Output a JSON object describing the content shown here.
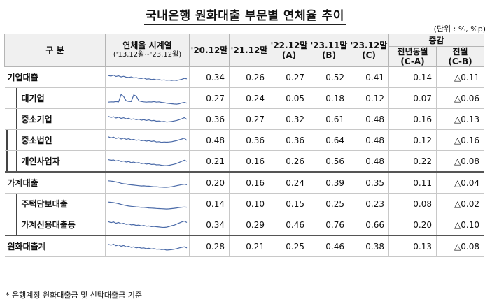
{
  "title": "국내은행 원화대출 부문별 연체율 추이",
  "unit": "(단위 : %, %p)",
  "headers": {
    "category": "구  분",
    "sparkline_title": "연체율 시계열",
    "sparkline_range": "('13.12월~'23.12월)",
    "periods": [
      {
        "label": "'20.12말",
        "sub": ""
      },
      {
        "label": "'21.12말",
        "sub": ""
      },
      {
        "label": "'22.12말",
        "sub": "(A)"
      },
      {
        "label": "'23.11말",
        "sub": "(B)"
      },
      {
        "label": "'23.12말",
        "sub": "(C)"
      }
    ],
    "change_group": "증감",
    "changes": [
      {
        "label": "전년동월",
        "sub": "(C-A)"
      },
      {
        "label": "전월",
        "sub": "(C-B)"
      }
    ]
  },
  "rows": [
    {
      "label": "기업대출",
      "indent": 0,
      "values": [
        "0.34",
        "0.26",
        "0.27",
        "0.52",
        "0.41"
      ],
      "yoy": "0.14",
      "mom": "△0.11",
      "spark": [
        0.62,
        0.58,
        0.66,
        0.55,
        0.6,
        0.52,
        0.57,
        0.5,
        0.48,
        0.52,
        0.44,
        0.47,
        0.42,
        0.4,
        0.44,
        0.36,
        0.38,
        0.33,
        0.35,
        0.3,
        0.32,
        0.28,
        0.3,
        0.27,
        0.29,
        0.26,
        0.28,
        0.26,
        0.3,
        0.35,
        0.41,
        0.38
      ]
    },
    {
      "label": "대기업",
      "indent": 1,
      "values": [
        "0.27",
        "0.24",
        "0.05",
        "0.18",
        "0.12"
      ],
      "yoy": "0.07",
      "mom": "△0.06",
      "spark": [
        0.2,
        0.22,
        0.21,
        0.24,
        0.22,
        0.78,
        0.62,
        0.3,
        0.26,
        0.24,
        0.74,
        0.66,
        0.3,
        0.25,
        0.22,
        0.2,
        0.22,
        0.21,
        0.24,
        0.2,
        0.22,
        0.18,
        0.16,
        0.12,
        0.1,
        0.08,
        0.06,
        0.05,
        0.08,
        0.14,
        0.18,
        0.12
      ]
    },
    {
      "label": "중소기업",
      "indent": 1,
      "values": [
        "0.36",
        "0.27",
        "0.32",
        "0.61",
        "0.48"
      ],
      "yoy": "0.16",
      "mom": "△0.13",
      "spark": [
        0.7,
        0.62,
        0.68,
        0.58,
        0.64,
        0.55,
        0.6,
        0.52,
        0.56,
        0.48,
        0.52,
        0.45,
        0.5,
        0.42,
        0.46,
        0.4,
        0.44,
        0.38,
        0.4,
        0.34,
        0.36,
        0.3,
        0.33,
        0.28,
        0.3,
        0.32,
        0.36,
        0.4,
        0.46,
        0.52,
        0.61,
        0.48
      ]
    },
    {
      "label": "중소법인",
      "indent": 2,
      "values": [
        "0.48",
        "0.36",
        "0.36",
        "0.64",
        "0.48"
      ],
      "yoy": "0.12",
      "mom": "△0.16",
      "spark": [
        0.75,
        0.66,
        0.72,
        0.62,
        0.68,
        0.58,
        0.64,
        0.56,
        0.6,
        0.52,
        0.55,
        0.48,
        0.52,
        0.45,
        0.48,
        0.42,
        0.46,
        0.4,
        0.43,
        0.36,
        0.38,
        0.33,
        0.36,
        0.34,
        0.36,
        0.38,
        0.42,
        0.46,
        0.52,
        0.58,
        0.64,
        0.48
      ]
    },
    {
      "label": "개인사업자",
      "indent": 2,
      "values": [
        "0.21",
        "0.16",
        "0.26",
        "0.56",
        "0.48"
      ],
      "yoy": "0.22",
      "mom": "△0.08",
      "spark": [
        0.6,
        0.55,
        0.58,
        0.5,
        0.54,
        0.46,
        0.5,
        0.42,
        0.46,
        0.38,
        0.42,
        0.35,
        0.38,
        0.3,
        0.33,
        0.27,
        0.3,
        0.24,
        0.26,
        0.21,
        0.22,
        0.18,
        0.16,
        0.15,
        0.18,
        0.22,
        0.26,
        0.32,
        0.4,
        0.48,
        0.56,
        0.48
      ]
    },
    {
      "label": "가계대출",
      "indent": 0,
      "values": [
        "0.20",
        "0.16",
        "0.24",
        "0.39",
        "0.35"
      ],
      "yoy": "0.11",
      "mom": "△0.04",
      "spark": [
        0.64,
        0.62,
        0.6,
        0.56,
        0.52,
        0.46,
        0.42,
        0.4,
        0.36,
        0.34,
        0.32,
        0.3,
        0.28,
        0.26,
        0.27,
        0.25,
        0.24,
        0.22,
        0.2,
        0.2,
        0.18,
        0.17,
        0.16,
        0.16,
        0.18,
        0.2,
        0.24,
        0.28,
        0.32,
        0.36,
        0.39,
        0.35
      ]
    },
    {
      "label": "주택담보대출",
      "indent": 1,
      "values": [
        "0.14",
        "0.10",
        "0.15",
        "0.25",
        "0.23"
      ],
      "yoy": "0.08",
      "mom": "△0.02",
      "spark": [
        0.62,
        0.6,
        0.58,
        0.54,
        0.5,
        0.44,
        0.4,
        0.36,
        0.32,
        0.3,
        0.28,
        0.26,
        0.24,
        0.22,
        0.22,
        0.2,
        0.18,
        0.17,
        0.16,
        0.14,
        0.13,
        0.12,
        0.11,
        0.1,
        0.11,
        0.13,
        0.15,
        0.18,
        0.21,
        0.23,
        0.25,
        0.23
      ]
    },
    {
      "label": "가계신용대출등",
      "indent": 1,
      "values": [
        "0.34",
        "0.29",
        "0.46",
        "0.76",
        "0.66"
      ],
      "yoy": "0.20",
      "mom": "△0.10",
      "spark": [
        0.72,
        0.64,
        0.7,
        0.6,
        0.66,
        0.56,
        0.6,
        0.52,
        0.55,
        0.48,
        0.5,
        0.44,
        0.47,
        0.4,
        0.43,
        0.38,
        0.4,
        0.35,
        0.37,
        0.34,
        0.32,
        0.3,
        0.29,
        0.31,
        0.36,
        0.42,
        0.46,
        0.54,
        0.62,
        0.7,
        0.76,
        0.66
      ]
    },
    {
      "label": "원화대출계",
      "indent": 0,
      "values": [
        "0.28",
        "0.21",
        "0.25",
        "0.46",
        "0.38"
      ],
      "yoy": "0.13",
      "mom": "△0.08",
      "spark": [
        0.64,
        0.58,
        0.66,
        0.54,
        0.6,
        0.5,
        0.56,
        0.46,
        0.5,
        0.42,
        0.46,
        0.38,
        0.42,
        0.36,
        0.38,
        0.32,
        0.35,
        0.3,
        0.32,
        0.28,
        0.29,
        0.25,
        0.27,
        0.21,
        0.23,
        0.25,
        0.28,
        0.32,
        0.38,
        0.42,
        0.46,
        0.38
      ]
    }
  ],
  "footnote": "* 은행계정 원화대출금 및 신탁대출금 기준",
  "colors": {
    "header_bg": "#f0f0f0",
    "spark_line": "#4a6aa8"
  }
}
